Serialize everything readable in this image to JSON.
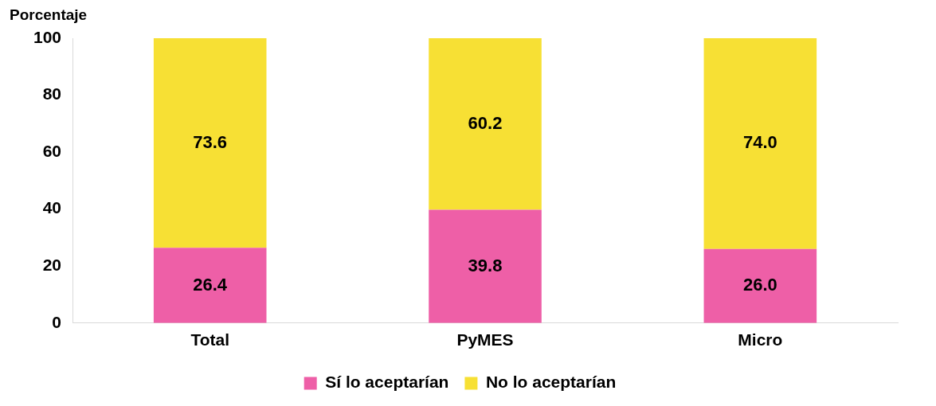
{
  "chart_data": {
    "type": "bar",
    "stacked": true,
    "ylabel": "Porcentaje",
    "categories": [
      "Total",
      "PyMES",
      "Micro"
    ],
    "series": [
      {
        "name": "Sí lo aceptarían",
        "color": "#ee5fa7",
        "values": [
          26.4,
          39.8,
          26.0
        ]
      },
      {
        "name": "No lo aceptarían",
        "color": "#f7e034",
        "values": [
          73.6,
          60.2,
          74.0
        ]
      }
    ],
    "value_labels": [
      [
        "26.4",
        "39.8",
        "26.0"
      ],
      [
        "73.6",
        "60.2",
        "74.0"
      ]
    ],
    "ylim": [
      0,
      100
    ],
    "yticks": [
      0,
      20,
      40,
      60,
      80,
      100
    ],
    "grid": false,
    "legend": "bottom"
  }
}
